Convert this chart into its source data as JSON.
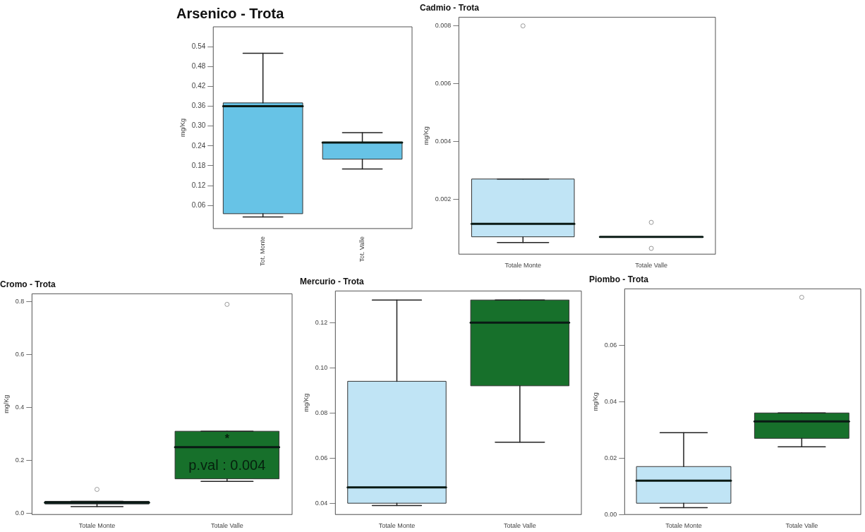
{
  "chart_data": [
    {
      "type": "box",
      "title": "Arsenico - Trota",
      "ylabel": "mg/Kg",
      "categories": [
        "Tot. Monte",
        "Tot. Valle"
      ],
      "colors": [
        "#67c3e6",
        "#67c3e6"
      ],
      "boxes": [
        {
          "low": 0.025,
          "q1": 0.035,
          "median": 0.36,
          "q3": 0.37,
          "high": 0.52
        },
        {
          "low": 0.17,
          "q1": 0.2,
          "median": 0.25,
          "q3": 0.25,
          "high": 0.28
        }
      ],
      "ylim": [
        -0.01,
        0.6
      ],
      "yticks": [
        0.06,
        0.12,
        0.18,
        0.24,
        {
          "value": 0.3,
          "label": "0.30"
        },
        0.36,
        0.42,
        0.48,
        0.54
      ]
    },
    {
      "type": "box",
      "title": "Cadmio - Trota",
      "ylabel": "mg/Kg",
      "categories": [
        "Totale Monte",
        "Totale Valle"
      ],
      "colors": [
        "#c0e4f5",
        "#333333"
      ],
      "boxes": [
        {
          "low": 0.0005,
          "q1": 0.0007,
          "median": 0.00115,
          "q3": 0.0027,
          "high": 0.0027,
          "outliers": [
            0.008
          ]
        },
        {
          "low": 0.0007,
          "q1": 0.0007,
          "median": 0.0007,
          "q3": 0.0007,
          "high": 0.0007,
          "outliers": [
            0.0012,
            0.0003
          ]
        }
      ],
      "ylim": [
        0.0001,
        0.0083
      ],
      "yticks": [
        0.002,
        0.004,
        0.006,
        0.008
      ]
    },
    {
      "type": "box",
      "title": "Cromo - Trota",
      "ylabel": "mg/Kg",
      "categories": [
        "Totale Monte",
        "Totale Valle"
      ],
      "colors": [
        "#34495e",
        "#17702b"
      ],
      "boxes": [
        {
          "low": 0.025,
          "q1": 0.035,
          "median": 0.04,
          "q3": 0.045,
          "high": 0.045,
          "outliers": [
            0.09
          ]
        },
        {
          "low": 0.12,
          "q1": 0.13,
          "median": 0.25,
          "q3": 0.31,
          "high": 0.31,
          "outliers": [
            0.79
          ]
        }
      ],
      "ylim": [
        -0.005,
        0.83
      ],
      "yticks": [
        {
          "value": 0,
          "label": "0.0"
        },
        0.2,
        0.4,
        0.6,
        0.8
      ],
      "annotations": [
        "*",
        "p.val : 0.004"
      ]
    },
    {
      "type": "box",
      "title": "Mercurio - Trota",
      "ylabel": "mg/Kg",
      "categories": [
        "Totale Monte",
        "Totale Valle"
      ],
      "colors": [
        "#c0e4f5",
        "#17702b"
      ],
      "boxes": [
        {
          "low": 0.039,
          "q1": 0.04,
          "median": 0.047,
          "q3": 0.094,
          "high": 0.13
        },
        {
          "low": 0.067,
          "q1": 0.092,
          "median": 0.12,
          "q3": 0.13,
          "high": 0.13
        }
      ],
      "ylim": [
        0.035,
        0.134
      ],
      "yticks": [
        0.04,
        0.06,
        0.08,
        {
          "value": 0.1,
          "label": "0.10"
        },
        0.12
      ]
    },
    {
      "type": "box",
      "title": "Piombo - Trota",
      "ylabel": "mg/Kg",
      "categories": [
        "Totale Monte",
        "Totale Valle"
      ],
      "colors": [
        "#c0e4f5",
        "#17702b"
      ],
      "boxes": [
        {
          "low": 0.0024,
          "q1": 0.004,
          "median": 0.012,
          "q3": 0.017,
          "high": 0.029
        },
        {
          "low": 0.024,
          "q1": 0.027,
          "median": 0.033,
          "q3": 0.036,
          "high": 0.036,
          "outliers": [
            0.077
          ]
        }
      ],
      "ylim": [
        0,
        0.08
      ],
      "yticks": [
        {
          "value": 0,
          "label": "0.00"
        },
        0.02,
        0.04,
        0.06
      ]
    }
  ]
}
